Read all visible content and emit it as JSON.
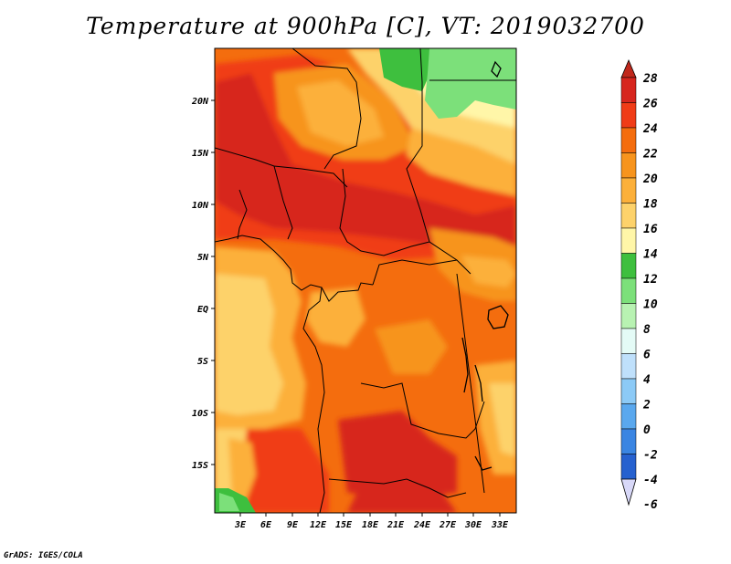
{
  "title": "Temperature at 900hPa [C], VT: 2019032700",
  "credit": "GrADS: IGES/COLA",
  "map": {
    "variable": "Temperature",
    "level": "900hPa",
    "units": "C",
    "valid_time": "2019032700",
    "lat_ticks": [
      "20N",
      "15N",
      "10N",
      "5N",
      "EQ",
      "5S",
      "10S",
      "15S"
    ],
    "lon_ticks": [
      "3E",
      "6E",
      "9E",
      "12E",
      "15E",
      "18E",
      "21E",
      "24E",
      "27E",
      "30E",
      "33E"
    ]
  },
  "colorbar": {
    "labels": [
      "28",
      "26",
      "24",
      "22",
      "20",
      "18",
      "16",
      "14",
      "12",
      "10",
      "8",
      "6",
      "4",
      "2",
      "0",
      "-2",
      "-4",
      "-6"
    ],
    "colors": [
      "#d7261e",
      "#f03c17",
      "#f46d0e",
      "#f7941d",
      "#fcb03a",
      "#fdd26b",
      "#fff6a8",
      "#3ebf3e",
      "#7ce07a",
      "#b8f2b2",
      "#e4fbf6",
      "#bfe0fb",
      "#8ccaf6",
      "#5aa8ee",
      "#3a85e2",
      "#2661cf",
      "#1a45b0",
      "#0e2480",
      "#09106a"
    ],
    "top_arrow_color": "#c0281c",
    "bottom_arrow_color": "#d8d8f8"
  }
}
